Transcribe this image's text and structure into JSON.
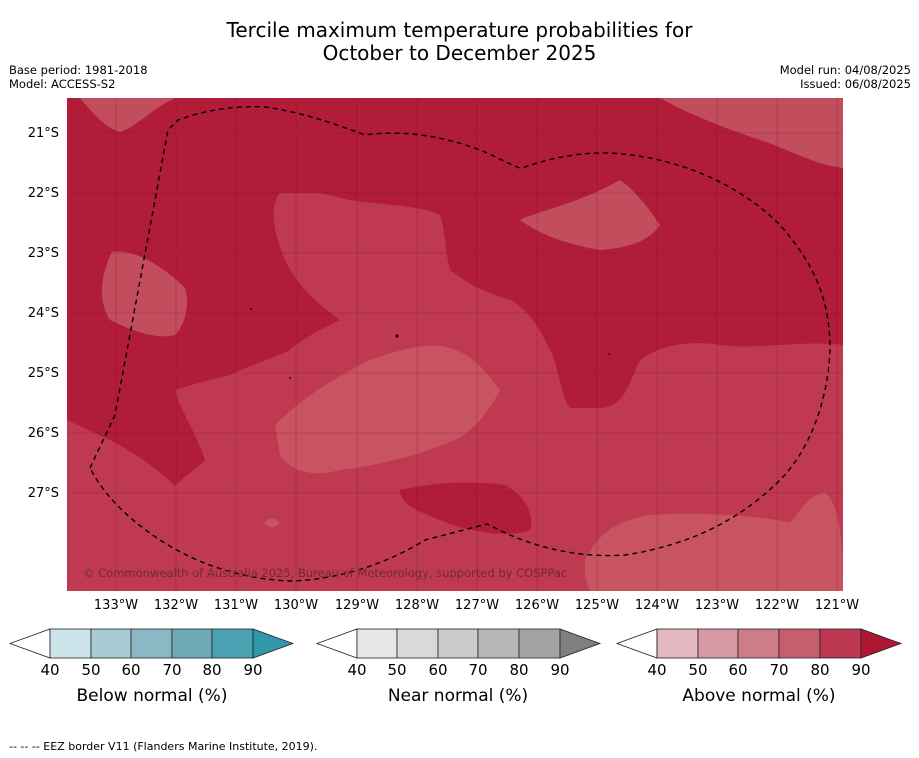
{
  "title": {
    "line1": "Tercile maximum temperature probabilities for",
    "line2": "October to December 2025"
  },
  "meta_left": {
    "base_period": "Base period: 1981-2018",
    "model": "Model: ACCESS-S2"
  },
  "meta_right": {
    "model_run": "Model run: 04/08/2025",
    "issued": "Issued: 06/08/2025"
  },
  "map": {
    "latitude_labels": [
      "21°S",
      "22°S",
      "23°S",
      "24°S",
      "25°S",
      "26°S",
      "27°S"
    ],
    "longitude_labels": [
      "133°W",
      "132°W",
      "131°W",
      "130°W",
      "129°W",
      "128°W",
      "127°W",
      "126°W",
      "125°W",
      "124°W",
      "123°W",
      "122°W",
      "121°W"
    ],
    "copyright": "© Commonwealth of Australia 2025, Bureau of Meteorology, supported by COSPPac",
    "colors": {
      "above_80_90": "#b11c38",
      "above_70_80": "#bf3a50",
      "above_60_70": "#c24d5d",
      "grid": "#6b1424"
    }
  },
  "colorbars": [
    {
      "title": "Below normal (%)",
      "ticks": [
        "40",
        "50",
        "60",
        "70",
        "80",
        "90"
      ],
      "colors": [
        "#ffffff",
        "#cce3ea",
        "#a8cbd3",
        "#8bb8c4",
        "#6faab8",
        "#4aa1b2",
        "#2f97a8"
      ]
    },
    {
      "title": "Near normal (%)",
      "ticks": [
        "40",
        "50",
        "60",
        "70",
        "80",
        "90"
      ],
      "colors": [
        "#ffffff",
        "#e6e6e6",
        "#d9d9d9",
        "#cacaca",
        "#b8b8b8",
        "#a3a3a3",
        "#7f7f7f"
      ]
    },
    {
      "title": "Above normal (%)",
      "ticks": [
        "40",
        "50",
        "60",
        "70",
        "80",
        "90"
      ],
      "colors": [
        "#ffffff",
        "#e3b8c0",
        "#d79aa4",
        "#ce7c87",
        "#c75e6e",
        "#bc3750",
        "#ae1733"
      ]
    }
  ],
  "footer": "--  --  -- EEZ border V11 (Flanders Marine Institute, 2019)."
}
